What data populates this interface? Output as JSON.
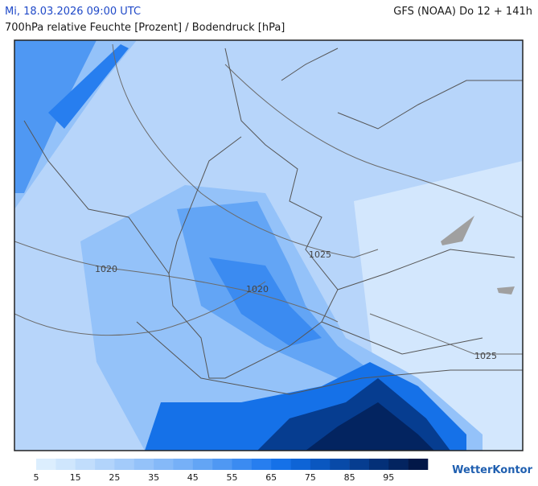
{
  "header": {
    "valid_time": "Mi, 18.03.2026 09:00 UTC",
    "model_run": "GFS (NOAA) Do 12 + 141h",
    "parameter": "700hPa relative Feuchte [Prozent] / Bodendruck [hPa]"
  },
  "isobars": [
    {
      "label": "1020"
    },
    {
      "label": "1025"
    },
    {
      "label": "1020"
    },
    {
      "label": "1025"
    }
  ],
  "colorbar": {
    "colors": [
      "#dceefe",
      "#cfe6fd",
      "#c1ddfc",
      "#b2d4fb",
      "#a3cbfa",
      "#94c2f9",
      "#85b9f8",
      "#76b0f7",
      "#63a5f5",
      "#4f98f3",
      "#3b8bf1",
      "#277eef",
      "#1571e8",
      "#0e64d6",
      "#0a57c0",
      "#084aa8",
      "#063d90",
      "#043078",
      "#032460",
      "#021848"
    ],
    "ticks": [
      5,
      15,
      25,
      35,
      45,
      55,
      65,
      75,
      85,
      95
    ]
  },
  "logo": "WetterKontor"
}
